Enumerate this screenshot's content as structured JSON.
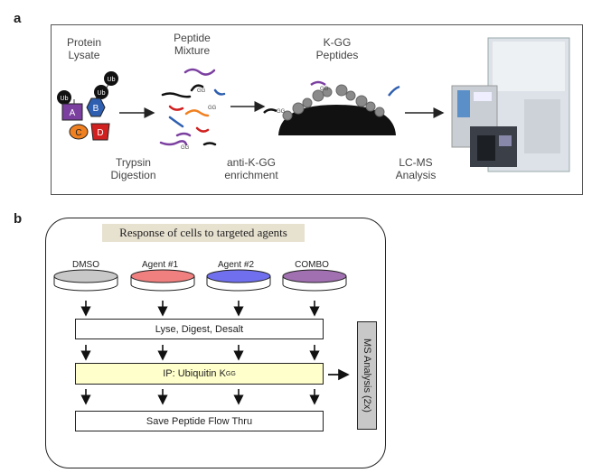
{
  "panel_a": {
    "letter": "a",
    "labels": {
      "protein_lysate": [
        "Protein",
        "Lysate"
      ],
      "peptide_mixture": [
        "Peptide",
        "Mixture"
      ],
      "kgg_peptides": [
        "K-GG",
        "Peptides"
      ],
      "trypsin": [
        "Trypsin",
        "Digestion"
      ],
      "enrichment": [
        "anti-K-GG",
        "enrichment"
      ],
      "lcms": [
        "LC-MS",
        "Analysis"
      ]
    },
    "protein_tags": {
      "ub": "Ub",
      "a": "A",
      "b": "B",
      "c": "C",
      "d": "D"
    },
    "gg_tag": "GG",
    "colors": {
      "A": "#7b3fa0",
      "B": "#2f5fb0",
      "C": "#f08020",
      "D": "#d02020"
    }
  },
  "panel_b": {
    "letter": "b",
    "title": "Response of cells to targeted agents",
    "conditions": [
      {
        "name": "DMSO",
        "color": "#c8c8c8"
      },
      {
        "name": "Agent #1",
        "color": "#f08080"
      },
      {
        "name": "Agent #2",
        "color": "#7070ee"
      },
      {
        "name": "COMBO",
        "color": "#a070b0"
      }
    ],
    "steps": {
      "lyse": "Lyse, Digest, Desalt",
      "ip_prefix": "IP: Ubiquitin K",
      "ip_sup": "GG",
      "save": "Save Peptide Flow Thru"
    },
    "ms": "MS Analysis (2x)"
  }
}
